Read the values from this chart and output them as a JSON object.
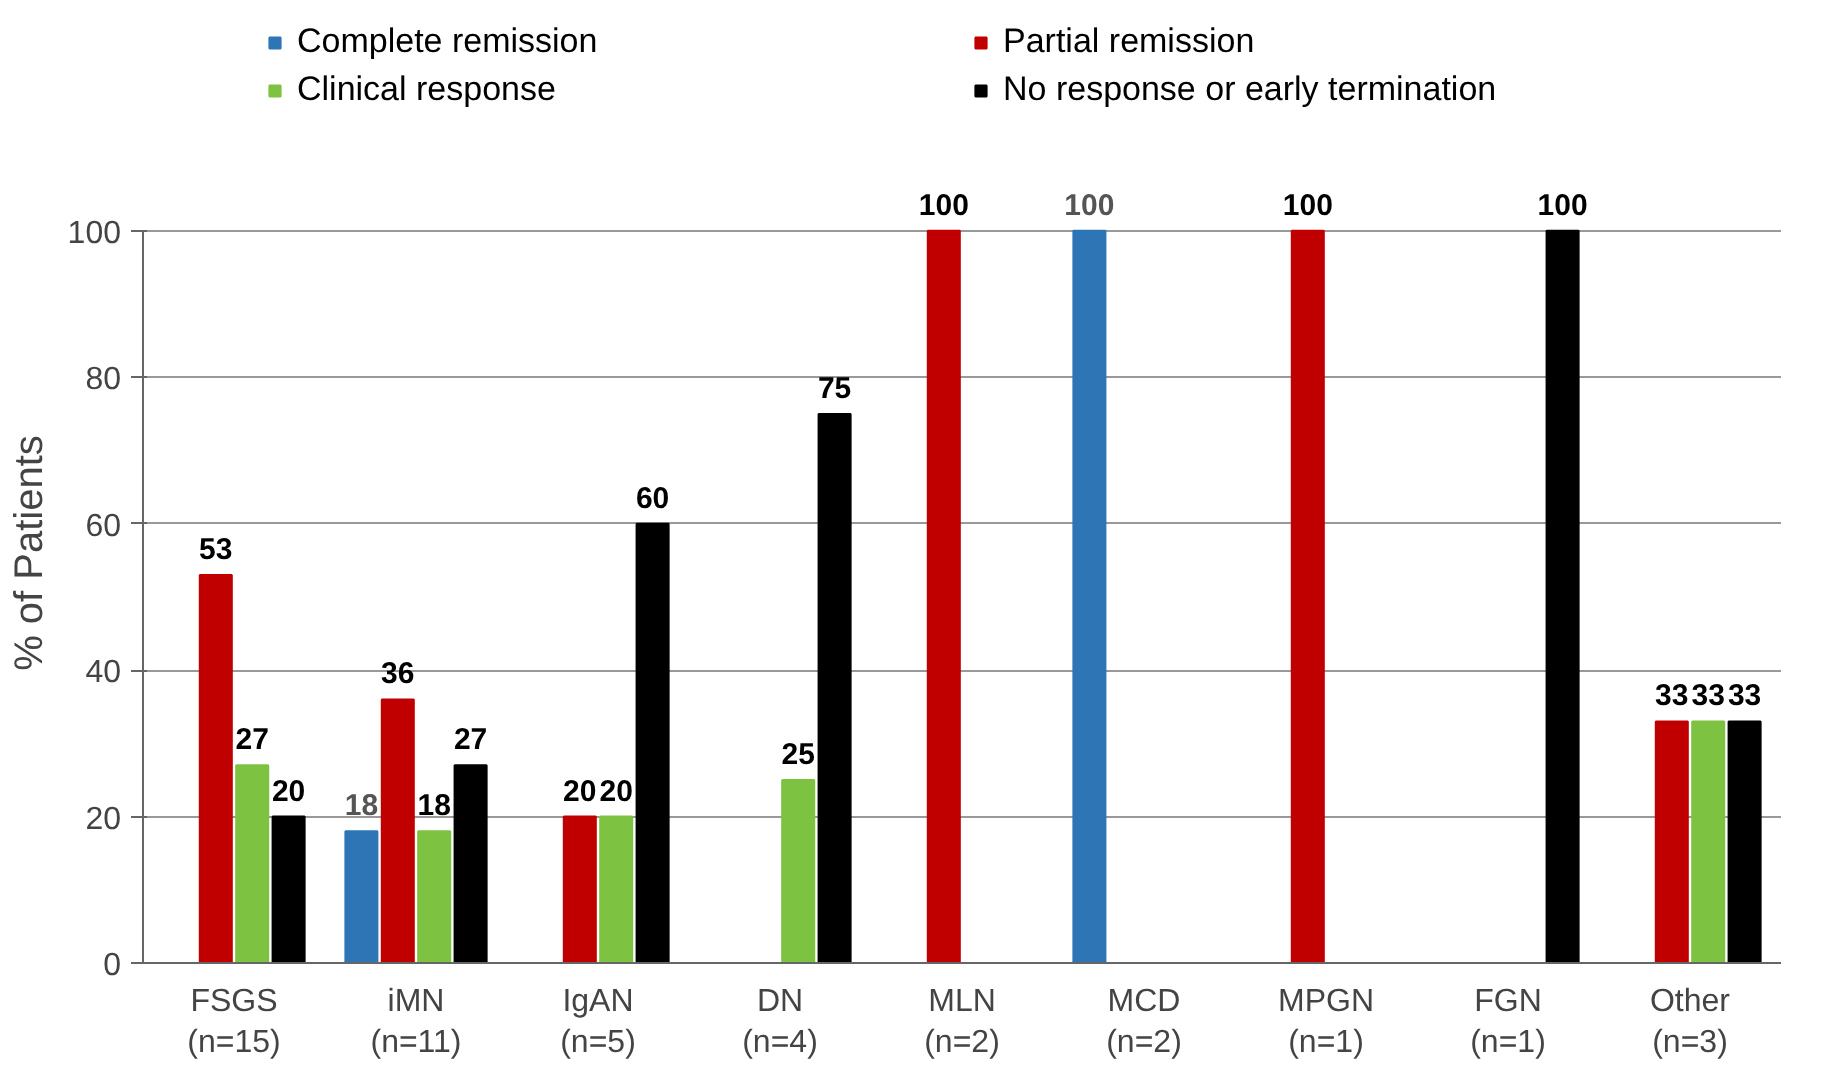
{
  "chart_data": {
    "type": "bar",
    "ylabel": "% of Patients",
    "categories": [
      "FSGS\n(n=15)",
      "iMN\n(n=11)",
      "IgAN\n(n=5)",
      "DN\n(n=4)",
      "MLN\n(n=2)",
      "MCD\n(n=2)",
      "MPGN\n(n=1)",
      "FGN\n(n=1)",
      "Other\n(n=3)"
    ],
    "series": [
      {
        "name": "Complete remission",
        "color": "#2e75b6",
        "values": [
          null,
          18,
          null,
          null,
          null,
          100,
          null,
          null,
          null
        ]
      },
      {
        "name": "Partial remission",
        "color": "#c00000",
        "values": [
          53,
          36,
          20,
          null,
          100,
          null,
          100,
          null,
          33
        ]
      },
      {
        "name": "Clinical response",
        "color": "#7dc241",
        "values": [
          27,
          18,
          20,
          25,
          null,
          null,
          null,
          null,
          33
        ]
      },
      {
        "name": "No response or early termination",
        "color": "#000000",
        "values": [
          20,
          27,
          60,
          75,
          null,
          null,
          null,
          100,
          33
        ]
      }
    ],
    "ylim": [
      0,
      100
    ],
    "yticks": [
      0,
      20,
      40,
      60,
      80,
      100
    ],
    "grid": "y",
    "legend": "top",
    "data_labels": true
  }
}
